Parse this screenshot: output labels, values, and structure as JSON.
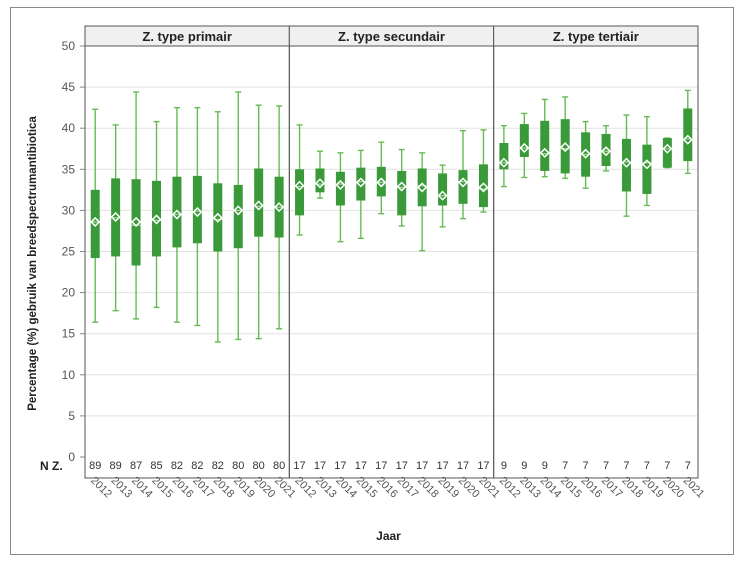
{
  "chart_data": {
    "type": "boxplot",
    "ylabel": "Percentage (%) gebruik van breedspectrumantibiotica",
    "xlabel": "Jaar",
    "ylim": [
      0,
      50
    ],
    "yticks": [
      0,
      5,
      10,
      15,
      20,
      25,
      30,
      35,
      40,
      45,
      50
    ],
    "grid": true,
    "n_row_label": "N Z.",
    "years": [
      "2012",
      "2013",
      "2014",
      "2015",
      "2016",
      "2017",
      "2018",
      "2019",
      "2020",
      "2021"
    ],
    "colors": {
      "box": "#3a9a3a",
      "whisker": "#66bb55",
      "mean_marker": "#ffffff",
      "grid": "#e2e2e2",
      "strip": "#f0f0f0"
    },
    "panels": [
      {
        "title": "Z. type primair",
        "n": [
          "89",
          "89",
          "87",
          "85",
          "82",
          "82",
          "82",
          "80",
          "80",
          "80"
        ],
        "boxes": [
          {
            "min": 16.4,
            "q1": 24.2,
            "median": 28.6,
            "q3": 32.5,
            "max": 42.3,
            "mean": 28.6
          },
          {
            "min": 17.8,
            "q1": 24.4,
            "median": 29.1,
            "q3": 33.9,
            "max": 40.4,
            "mean": 29.2
          },
          {
            "min": 16.8,
            "q1": 23.3,
            "median": 28.2,
            "q3": 33.8,
            "max": 44.4,
            "mean": 28.6
          },
          {
            "min": 18.2,
            "q1": 24.4,
            "median": 28.8,
            "q3": 33.6,
            "max": 40.8,
            "mean": 28.9
          },
          {
            "min": 16.4,
            "q1": 25.5,
            "median": 29.5,
            "q3": 34.1,
            "max": 42.5,
            "mean": 29.5
          },
          {
            "min": 16.0,
            "q1": 26.0,
            "median": 29.9,
            "q3": 34.2,
            "max": 42.5,
            "mean": 29.8
          },
          {
            "min": 14.0,
            "q1": 25.0,
            "median": 28.9,
            "q3": 33.3,
            "max": 42.0,
            "mean": 29.1
          },
          {
            "min": 14.3,
            "q1": 25.4,
            "median": 30.0,
            "q3": 33.1,
            "max": 44.4,
            "mean": 30.0
          },
          {
            "min": 14.4,
            "q1": 26.8,
            "median": 30.5,
            "q3": 35.1,
            "max": 42.8,
            "mean": 30.6
          },
          {
            "min": 15.6,
            "q1": 26.7,
            "median": 30.4,
            "q3": 34.1,
            "max": 42.7,
            "mean": 30.4
          }
        ]
      },
      {
        "title": "Z. type secundair",
        "n": [
          "17",
          "17",
          "17",
          "17",
          "17",
          "17",
          "17",
          "17",
          "17",
          "17"
        ],
        "boxes": [
          {
            "min": 27.0,
            "q1": 29.4,
            "median": 32.9,
            "q3": 35.0,
            "max": 40.4,
            "mean": 33.0
          },
          {
            "min": 31.5,
            "q1": 32.2,
            "median": 33.2,
            "q3": 35.1,
            "max": 37.2,
            "mean": 33.3
          },
          {
            "min": 26.2,
            "q1": 30.6,
            "median": 33.2,
            "q3": 34.7,
            "max": 37.0,
            "mean": 33.1
          },
          {
            "min": 26.6,
            "q1": 31.2,
            "median": 33.5,
            "q3": 35.2,
            "max": 37.3,
            "mean": 33.4
          },
          {
            "min": 29.6,
            "q1": 31.7,
            "median": 33.4,
            "q3": 35.3,
            "max": 38.3,
            "mean": 33.4
          },
          {
            "min": 28.1,
            "q1": 29.4,
            "median": 32.8,
            "q3": 34.8,
            "max": 37.4,
            "mean": 32.9
          },
          {
            "min": 25.1,
            "q1": 30.5,
            "median": 33.0,
            "q3": 35.1,
            "max": 37.0,
            "mean": 32.8
          },
          {
            "min": 28.0,
            "q1": 30.6,
            "median": 31.8,
            "q3": 34.5,
            "max": 35.5,
            "mean": 31.8
          },
          {
            "min": 29.0,
            "q1": 30.8,
            "median": 33.5,
            "q3": 34.9,
            "max": 39.7,
            "mean": 33.4
          },
          {
            "min": 29.8,
            "q1": 30.4,
            "median": 32.6,
            "q3": 35.6,
            "max": 39.8,
            "mean": 32.8
          }
        ]
      },
      {
        "title": "Z. type tertiair",
        "n": [
          "9",
          "9",
          "9",
          "7",
          "7",
          "7",
          "7",
          "7",
          "7",
          "7"
        ],
        "boxes": [
          {
            "min": 32.9,
            "q1": 35.0,
            "median": 35.8,
            "q3": 38.2,
            "max": 40.3,
            "mean": 35.8
          },
          {
            "min": 34.0,
            "q1": 36.5,
            "median": 37.6,
            "q3": 40.5,
            "max": 41.8,
            "mean": 37.6
          },
          {
            "min": 34.1,
            "q1": 34.8,
            "median": 36.9,
            "q3": 40.9,
            "max": 43.5,
            "mean": 37.0
          },
          {
            "min": 33.9,
            "q1": 34.5,
            "median": 37.5,
            "q3": 41.1,
            "max": 43.8,
            "mean": 37.7
          },
          {
            "min": 32.7,
            "q1": 34.1,
            "median": 36.8,
            "q3": 39.5,
            "max": 40.8,
            "mean": 36.9
          },
          {
            "min": 34.8,
            "q1": 35.4,
            "median": 37.2,
            "q3": 39.3,
            "max": 40.3,
            "mean": 37.2
          },
          {
            "min": 29.3,
            "q1": 32.3,
            "median": 35.9,
            "q3": 38.7,
            "max": 41.6,
            "mean": 35.8
          },
          {
            "min": 30.6,
            "q1": 32.0,
            "median": 35.8,
            "q3": 38.0,
            "max": 41.4,
            "mean": 35.6
          },
          {
            "min": 35.2,
            "q1": 35.2,
            "median": 37.5,
            "q3": 38.8,
            "max": 38.8,
            "mean": 37.5
          },
          {
            "min": 34.5,
            "q1": 36.0,
            "median": 38.7,
            "q3": 42.4,
            "max": 44.6,
            "mean": 38.6
          }
        ]
      }
    ]
  }
}
